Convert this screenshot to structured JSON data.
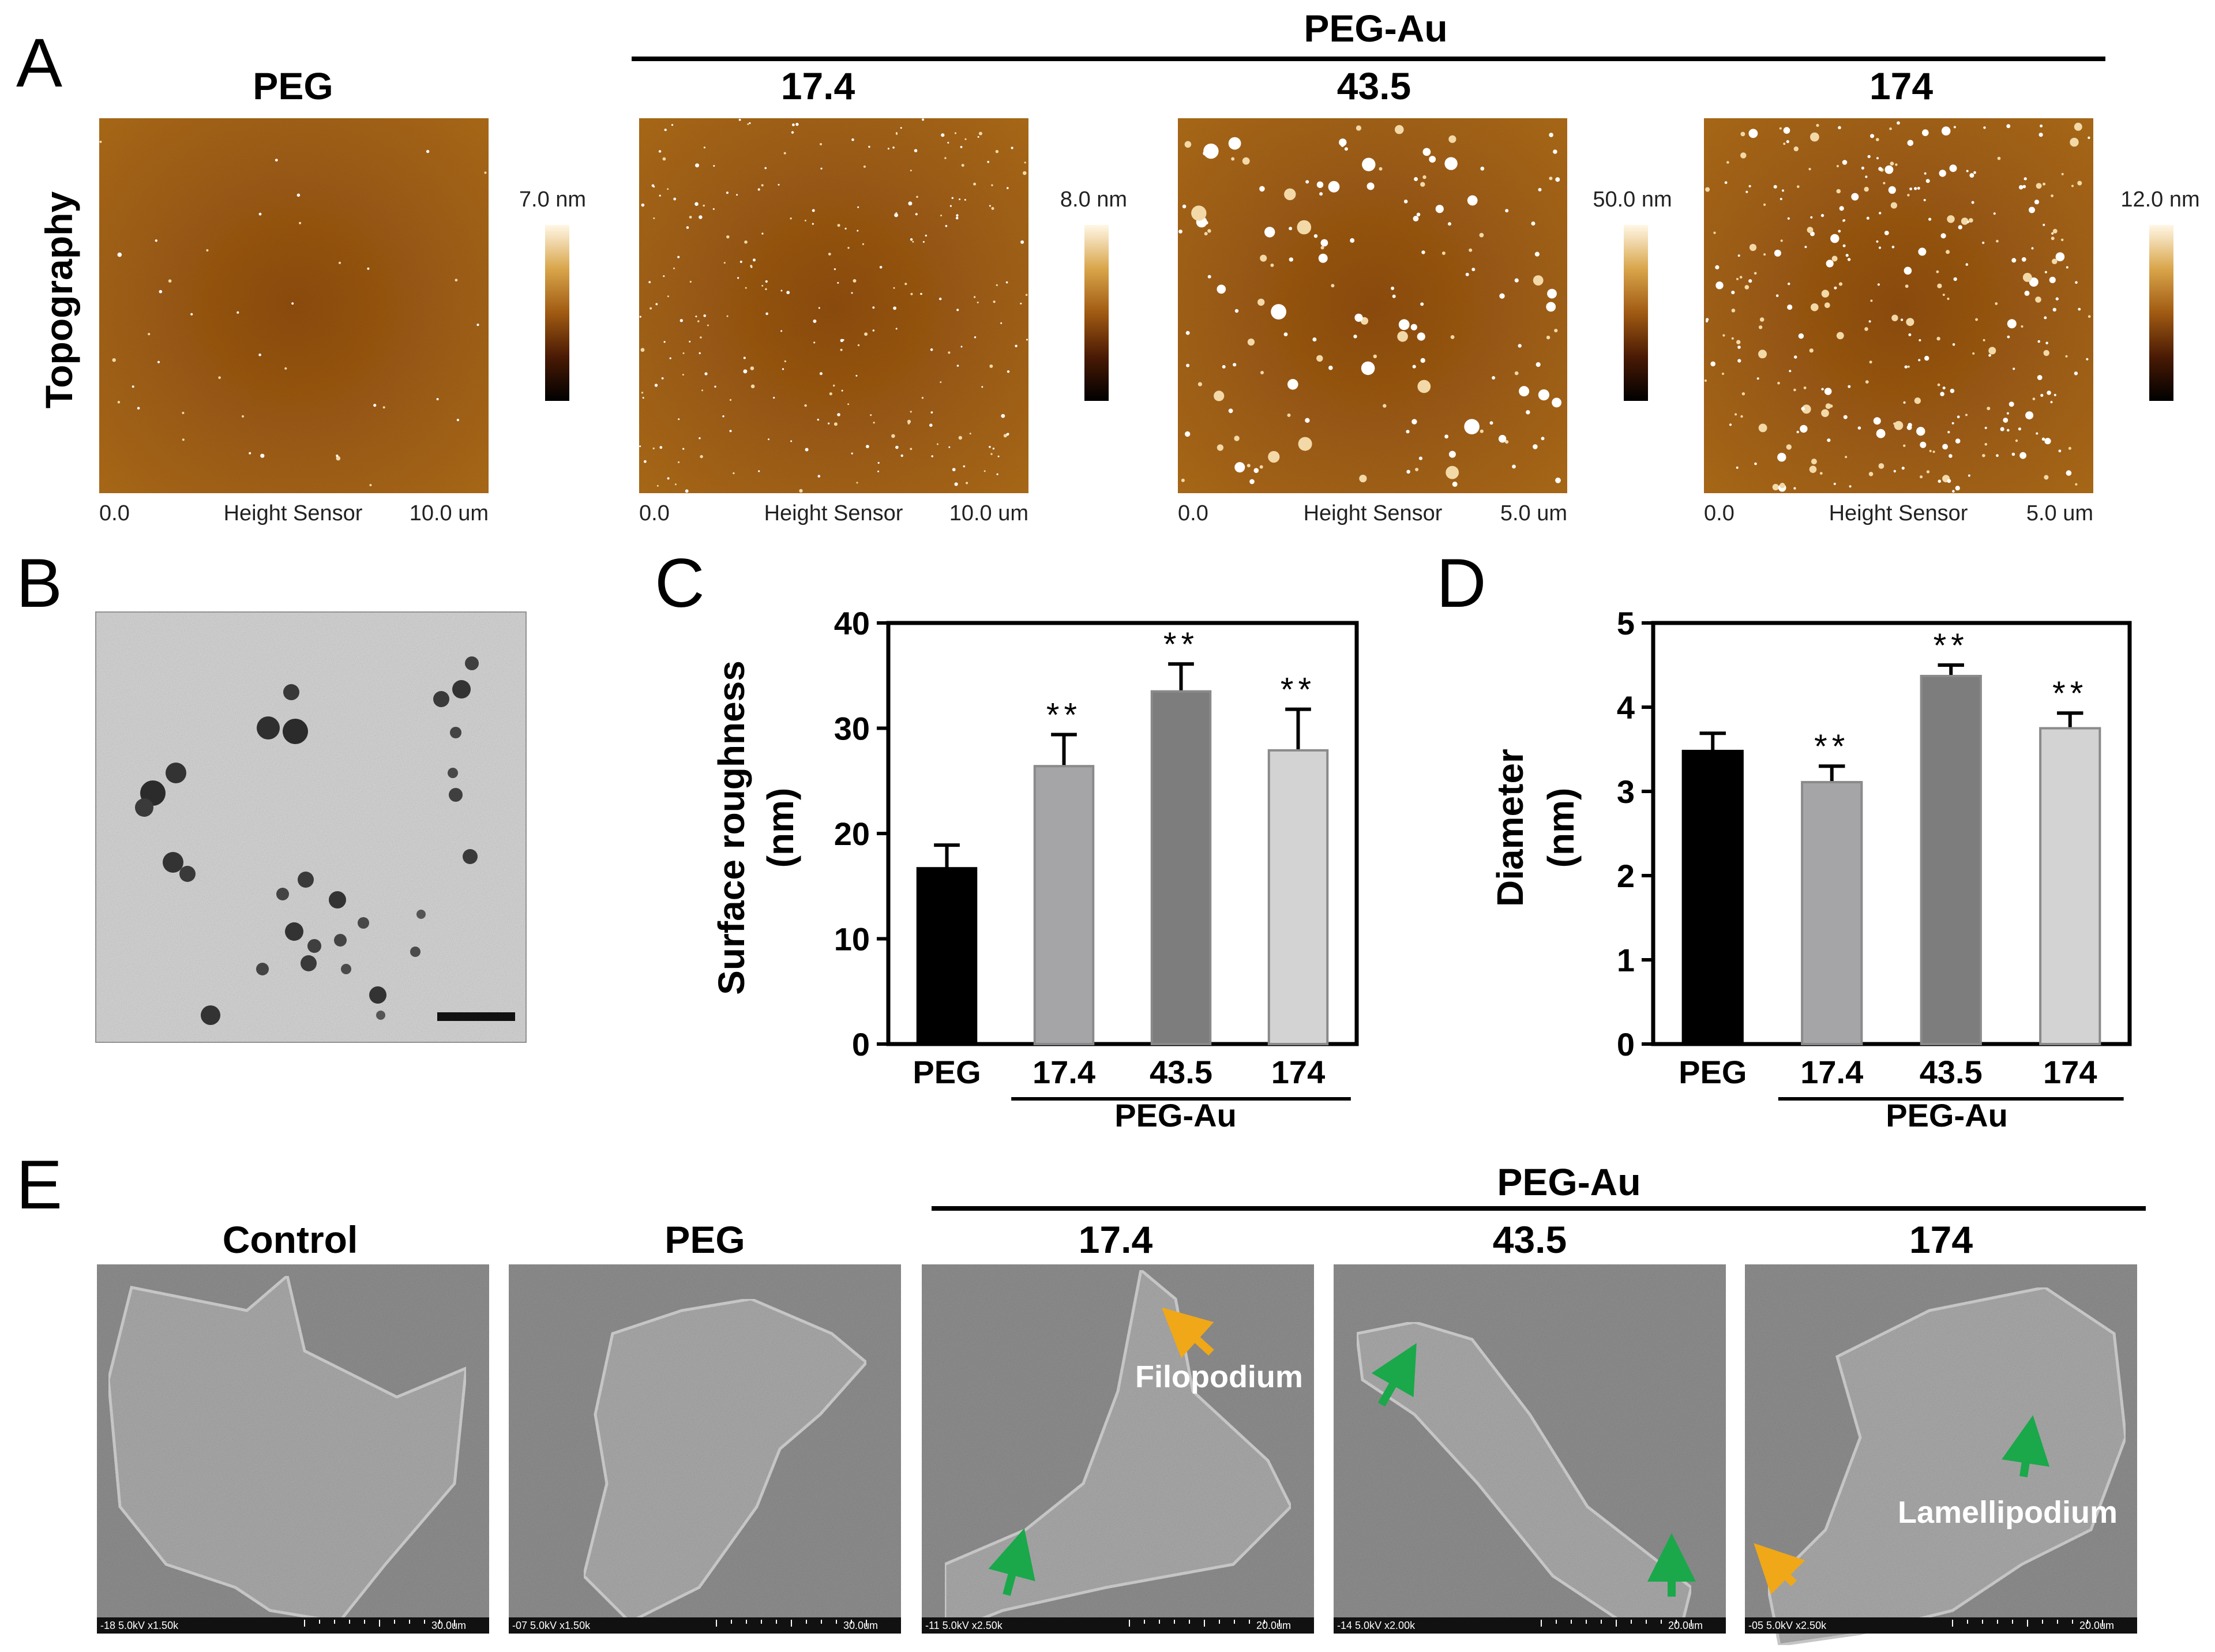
{
  "panel_labels": [
    "A",
    "B",
    "C",
    "D",
    "E"
  ],
  "panel_a": {
    "group_label": "PEG-Au",
    "row_label": "Topography",
    "axis_caption": "Height Sensor",
    "images": [
      {
        "title": "PEG",
        "colorbar_max": "7.0 nm",
        "x_start": "0.0",
        "x_end": "10.0 um"
      },
      {
        "title": "17.4",
        "colorbar_max": "8.0 nm",
        "x_start": "0.0",
        "x_end": "10.0 um"
      },
      {
        "title": "43.5",
        "colorbar_max": "50.0 nm",
        "x_start": "0.0",
        "x_end": "5.0 um"
      },
      {
        "title": "174",
        "colorbar_max": "12.0 nm",
        "x_start": "0.0",
        "x_end": "5.0 um"
      }
    ]
  },
  "panel_e": {
    "group_label": "PEG-Au",
    "images": [
      {
        "title": "Control",
        "scale_left": "-18 5.0kV x1.50k",
        "scale_right": "30.0um"
      },
      {
        "title": "PEG",
        "scale_left": "-07 5.0kV x1.50k",
        "scale_right": "30.0um"
      },
      {
        "title": "17.4",
        "scale_left": "-11 5.0kV x2.50k",
        "scale_right": "20.0um"
      },
      {
        "title": "43.5",
        "scale_left": "-14 5.0kV x2.00k",
        "scale_right": "20.0um"
      },
      {
        "title": "174",
        "scale_left": "-05 5.0kV x2.50k",
        "scale_right": "20.0um"
      }
    ],
    "annotations": [
      "Filopodium",
      "Lamellipodium"
    ]
  },
  "colors": {
    "afm_dark": "#8a4a0c",
    "afm_light": "#c07a1e",
    "sem_gray": "#8c8c8c",
    "filopodium_arrow": "#f0a818",
    "lamellipodium_arrow": "#1aa84a"
  },
  "chart_data": [
    {
      "type": "bar",
      "panel": "C",
      "categories": [
        "PEG",
        "17.4",
        "43.5",
        "174"
      ],
      "group_label": "PEG-Au",
      "ylabel_line1": "Surface roughness",
      "ylabel_line2": "(nm)",
      "ylim": [
        0,
        40
      ],
      "yticks": [
        "0",
        "10",
        "20",
        "30",
        "40"
      ],
      "values": [
        16.7,
        26.4,
        33.5,
        27.9
      ],
      "errors": [
        2.2,
        3.0,
        2.6,
        3.9
      ],
      "significance": [
        "",
        "**",
        "**",
        "**"
      ],
      "bar_colors": [
        "#000000",
        "#a5a5a8",
        "#7d7d7d",
        "#d3d3d3"
      ]
    },
    {
      "type": "bar",
      "panel": "D",
      "categories": [
        "PEG",
        "17.4",
        "43.5",
        "174"
      ],
      "group_label": "PEG-Au",
      "ylabel_line1": "Diameter",
      "ylabel_line2": "(nm)",
      "ylim": [
        0,
        5
      ],
      "yticks": [
        "0",
        "1",
        "2",
        "3",
        "4",
        "5"
      ],
      "values": [
        3.48,
        3.11,
        4.37,
        3.75
      ],
      "errors": [
        0.21,
        0.19,
        0.13,
        0.18
      ],
      "significance": [
        "",
        "**",
        "**",
        "**"
      ],
      "bar_colors": [
        "#000000",
        "#a5a5a8",
        "#7d7d7d",
        "#d3d3d3"
      ]
    }
  ]
}
